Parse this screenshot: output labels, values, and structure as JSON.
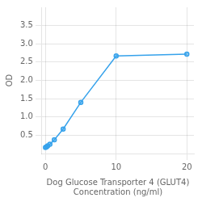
{
  "chart_data": {
    "type": "line",
    "x": [
      0,
      0.156,
      0.313,
      0.625,
      1.25,
      2.5,
      5,
      10,
      20
    ],
    "values": [
      0.168,
      0.183,
      0.21,
      0.252,
      0.378,
      0.668,
      1.4,
      2.67,
      2.72
    ],
    "xlabel": "Dog Glucose Transporter 4 (GLUT4)\nConcentration (ng/ml)",
    "ylabel": "OD",
    "xlim": [
      -0.5,
      21
    ],
    "ylim": [
      0,
      4.0
    ],
    "xticks": [
      0,
      10,
      20
    ],
    "yticks": [
      0.5,
      {
        "value": 1.0,
        "label": "1.0"
      },
      1.5,
      {
        "value": 2.0,
        "label": "2.0"
      },
      2.5,
      {
        "value": 3.0,
        "label": "3.0"
      },
      3.5
    ],
    "marker": "circle",
    "grid": true
  }
}
